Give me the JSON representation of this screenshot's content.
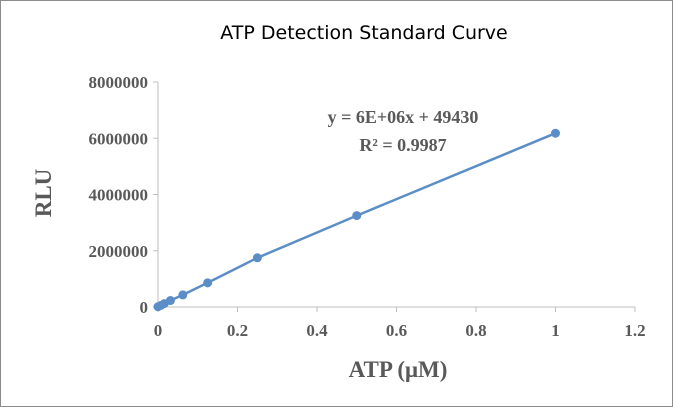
{
  "chart_data": {
    "type": "scatter",
    "title": "ATP Detection Standard Curve",
    "xlabel": "ATP (μM)",
    "ylabel": "RLU",
    "xlim": [
      0,
      1.2
    ],
    "ylim": [
      0,
      8000000
    ],
    "x_ticks": [
      "0",
      "0.2",
      "0.4",
      "0.6",
      "0.8",
      "1",
      "1.2"
    ],
    "y_ticks": [
      "0",
      "2000000",
      "4000000",
      "6000000",
      "8000000"
    ],
    "series": [
      {
        "color": "#5b8ec7",
        "points": [
          {
            "x": 0,
            "y": 10000
          },
          {
            "x": 0.0078,
            "y": 60000
          },
          {
            "x": 0.0156,
            "y": 120000
          },
          {
            "x": 0.03125,
            "y": 230000
          },
          {
            "x": 0.0625,
            "y": 430000
          },
          {
            "x": 0.125,
            "y": 860000
          },
          {
            "x": 0.25,
            "y": 1750000
          },
          {
            "x": 0.5,
            "y": 3250000
          },
          {
            "x": 1,
            "y": 6180000
          }
        ]
      }
    ],
    "annotations": {
      "equation": "y = 6E+06x + 49430",
      "r_squared": "R² = 0.9987"
    },
    "grid": false,
    "legend": "none"
  }
}
